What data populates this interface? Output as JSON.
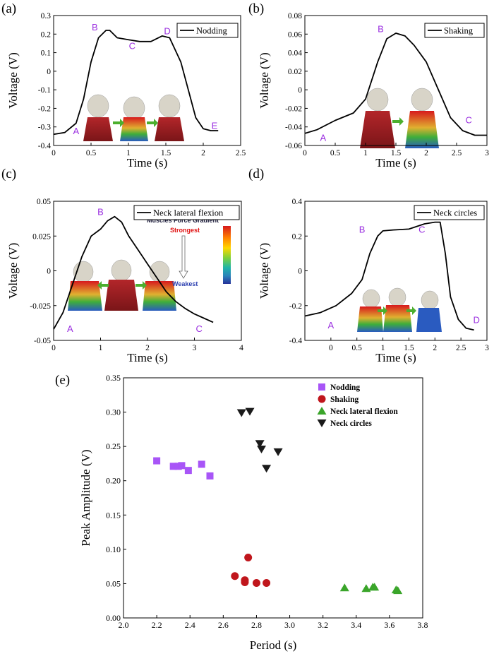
{
  "colors": {
    "line": "#000000",
    "point_label": "#9b30e0",
    "nodding": "#a855f7",
    "shaking": "#c0161c",
    "lateral": "#3aa52a",
    "circles": "#1a1a1a",
    "gradient": [
      "#d7191c",
      "#ff7f00",
      "#ffd700",
      "#7fd13b",
      "#1fb4a8",
      "#2b83ba",
      "#27329a"
    ]
  },
  "chart_data": [
    {
      "id": "a",
      "panel_label": "(a)",
      "type": "line",
      "legend": "Nodding",
      "xlabel": "Time (s)",
      "ylabel": "Voltage (V)",
      "xlim": [
        0,
        2.5
      ],
      "ylim": [
        -0.4,
        0.3
      ],
      "xticks": [
        0,
        0.5,
        1,
        1.5,
        2,
        2.5
      ],
      "yticks": [
        -0.4,
        -0.3,
        -0.2,
        -0.1,
        0,
        0.1,
        0.2,
        0.3
      ],
      "series": [
        {
          "name": "Nodding",
          "x": [
            0,
            0.15,
            0.3,
            0.4,
            0.5,
            0.6,
            0.7,
            0.75,
            0.85,
            1.0,
            1.15,
            1.3,
            1.45,
            1.55,
            1.7,
            1.8,
            1.9,
            2.0,
            2.1,
            2.2
          ],
          "y": [
            -0.34,
            -0.33,
            -0.28,
            -0.15,
            0.05,
            0.18,
            0.22,
            0.22,
            0.18,
            0.17,
            0.16,
            0.16,
            0.19,
            0.18,
            0.05,
            -0.1,
            -0.25,
            -0.31,
            -0.32,
            -0.32
          ]
        }
      ],
      "annotations": [
        {
          "text": "A",
          "x": 0.3,
          "y": -0.34
        },
        {
          "text": "B",
          "x": 0.55,
          "y": 0.22
        },
        {
          "text": "C",
          "x": 1.05,
          "y": 0.12
        },
        {
          "text": "D",
          "x": 1.52,
          "y": 0.2
        },
        {
          "text": "E",
          "x": 2.15,
          "y": -0.31
        }
      ]
    },
    {
      "id": "b",
      "panel_label": "(b)",
      "type": "line",
      "legend": "Shaking",
      "xlabel": "Time (s)",
      "ylabel": "Voltage (V)",
      "xlim": [
        0,
        3
      ],
      "ylim": [
        -0.06,
        0.08
      ],
      "xticks": [
        0,
        0.5,
        1,
        1.5,
        2,
        2.5,
        3
      ],
      "yticks": [
        -0.06,
        -0.04,
        -0.02,
        0,
        0.02,
        0.04,
        0.06,
        0.08
      ],
      "series": [
        {
          "name": "Shaking",
          "x": [
            0,
            0.2,
            0.5,
            0.8,
            1.0,
            1.2,
            1.35,
            1.5,
            1.65,
            1.8,
            2.0,
            2.2,
            2.4,
            2.6,
            2.8,
            3.0
          ],
          "y": [
            -0.047,
            -0.043,
            -0.033,
            -0.025,
            -0.01,
            0.03,
            0.055,
            0.061,
            0.058,
            0.048,
            0.03,
            0.0,
            -0.03,
            -0.044,
            -0.049,
            -0.049
          ]
        }
      ],
      "annotations": [
        {
          "text": "A",
          "x": 0.3,
          "y": -0.055
        },
        {
          "text": "B",
          "x": 1.25,
          "y": 0.062
        },
        {
          "text": "C",
          "x": 2.7,
          "y": -0.036
        }
      ]
    },
    {
      "id": "c",
      "panel_label": "(c)",
      "type": "line",
      "legend": "Neck lateral flexion",
      "xlabel": "Time (s)",
      "ylabel": "Voltage (V)",
      "xlim": [
        0,
        4
      ],
      "ylim": [
        -0.05,
        0.05
      ],
      "xticks": [
        0,
        1,
        2,
        3,
        4
      ],
      "yticks": [
        -0.05,
        -0.025,
        0,
        0.025,
        0.05
      ],
      "ytick_labels": [
        "-0.05",
        "-0.025",
        "0",
        "0.025",
        "0.05"
      ],
      "series": [
        {
          "name": "Neck lateral flexion",
          "x": [
            0,
            0.2,
            0.4,
            0.6,
            0.8,
            1.0,
            1.15,
            1.3,
            1.45,
            1.6,
            1.8,
            2.0,
            2.2,
            2.4,
            2.6,
            2.8,
            3.0,
            3.2,
            3.4
          ],
          "y": [
            -0.042,
            -0.03,
            -0.01,
            0.01,
            0.025,
            0.03,
            0.036,
            0.039,
            0.035,
            0.025,
            0.015,
            0.005,
            -0.005,
            -0.015,
            -0.022,
            -0.027,
            -0.031,
            -0.034,
            -0.037
          ]
        }
      ],
      "annotations": [
        {
          "text": "A",
          "x": 0.35,
          "y": -0.044
        },
        {
          "text": "B",
          "x": 1.0,
          "y": 0.04
        },
        {
          "text": "C",
          "x": 3.1,
          "y": -0.044
        }
      ]
    },
    {
      "id": "d",
      "panel_label": "(d)",
      "type": "line",
      "legend": "Neck circles",
      "xlabel": "Time (s)",
      "ylabel": "Voltage (V)",
      "xlim": [
        -0.5,
        3
      ],
      "ylim": [
        -0.4,
        0.4
      ],
      "xticks": [
        -0.5,
        0,
        0.5,
        1,
        1.5,
        2,
        2.5,
        3
      ],
      "xtick_labels": [
        "",
        "0",
        "0.5",
        "1",
        "1.5",
        "2",
        "2.5",
        "3"
      ],
      "yticks": [
        -0.4,
        -0.2,
        0,
        0.2,
        0.4
      ],
      "series": [
        {
          "name": "Neck circles",
          "x": [
            -0.5,
            -0.2,
            0.1,
            0.4,
            0.6,
            0.75,
            0.9,
            1.0,
            1.2,
            1.5,
            1.8,
            2.0,
            2.1,
            2.2,
            2.3,
            2.45,
            2.6,
            2.75
          ],
          "y": [
            -0.26,
            -0.24,
            -0.2,
            -0.13,
            -0.05,
            0.1,
            0.2,
            0.23,
            0.235,
            0.24,
            0.27,
            0.28,
            0.28,
            0.1,
            -0.15,
            -0.28,
            -0.33,
            -0.34
          ]
        }
      ],
      "annotations": [
        {
          "text": "A",
          "x": 0.0,
          "y": -0.33
        },
        {
          "text": "B",
          "x": 0.6,
          "y": 0.22
        },
        {
          "text": "C",
          "x": 1.75,
          "y": 0.22
        },
        {
          "text": "D",
          "x": 2.8,
          "y": -0.3
        }
      ]
    },
    {
      "id": "e",
      "panel_label": "(e)",
      "type": "scatter",
      "xlabel": "Period (s)",
      "ylabel": "Peak Amplitude (V)",
      "xlim": [
        2.0,
        3.8
      ],
      "ylim": [
        0.0,
        0.35
      ],
      "xticks": [
        2.0,
        2.2,
        2.4,
        2.6,
        2.8,
        3.0,
        3.2,
        3.4,
        3.6,
        3.8
      ],
      "xtick_labels": [
        "2.0",
        "2.2",
        "2.4",
        "2.6",
        "2.8",
        "3.0",
        "3.2",
        "3.4",
        "3.6",
        "3.8"
      ],
      "yticks": [
        0.0,
        0.05,
        0.1,
        0.15,
        0.2,
        0.25,
        0.3,
        0.35
      ],
      "ytick_labels": [
        "0.00",
        "0.05",
        "0.10",
        "0.15",
        "0.20",
        "0.25",
        "0.30",
        "0.35"
      ],
      "series": [
        {
          "name": "Nodding",
          "marker": "square",
          "x": [
            2.2,
            2.3,
            2.33,
            2.35,
            2.39,
            2.47,
            2.52
          ],
          "y": [
            0.229,
            0.221,
            0.221,
            0.222,
            0.215,
            0.224,
            0.207
          ]
        },
        {
          "name": "Shaking",
          "marker": "circle",
          "x": [
            2.67,
            2.73,
            2.73,
            2.75,
            2.8,
            2.86
          ],
          "y": [
            0.061,
            0.055,
            0.052,
            0.088,
            0.051,
            0.051
          ]
        },
        {
          "name": "Neck lateral flexion",
          "marker": "triangle-up",
          "x": [
            3.33,
            3.46,
            3.5,
            3.51,
            3.64,
            3.65
          ],
          "y": [
            0.044,
            0.043,
            0.045,
            0.045,
            0.041,
            0.04
          ]
        },
        {
          "name": "Neck circles",
          "marker": "triangle-down",
          "x": [
            2.71,
            2.76,
            2.82,
            2.83,
            2.86,
            2.93
          ],
          "y": [
            0.299,
            0.301,
            0.254,
            0.246,
            0.218,
            0.242
          ]
        }
      ]
    }
  ],
  "gradient_legend": {
    "title": "Muscles Force Gradient",
    "top": "Strongest",
    "bottom": "Weakest"
  }
}
